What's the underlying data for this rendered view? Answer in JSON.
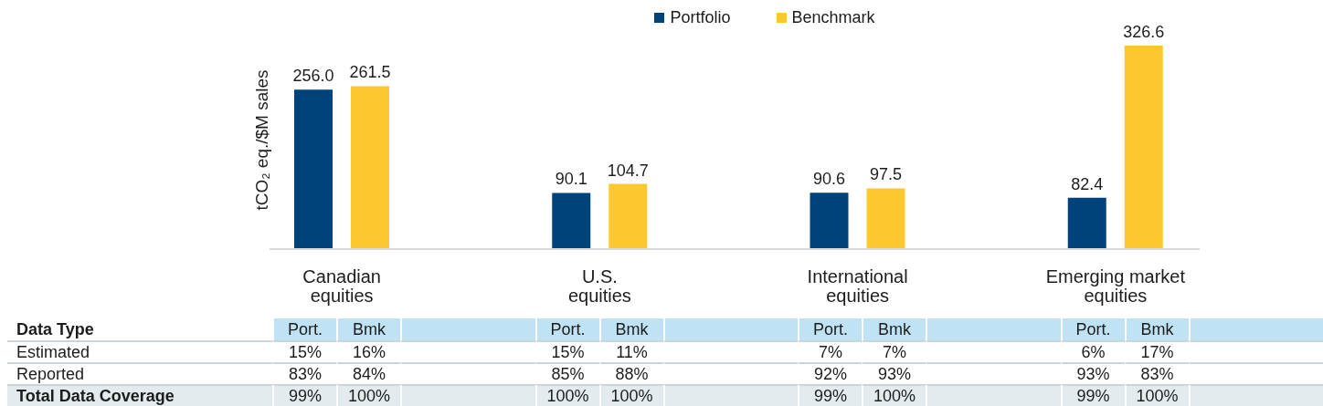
{
  "chart_data": [
    {
      "type": "bar",
      "categories": [
        "Canadian\nequities",
        "U.S.\nequities",
        "International\nequities",
        "Emerging market\nequities"
      ],
      "ylabel": "tCO₂ eq./$M sales",
      "legend": "top",
      "series": [
        {
          "name": "Portfolio",
          "color": "#00437a",
          "values": [
            256.0,
            90.1,
            90.6,
            82.4
          ],
          "value_labels": [
            "256.0",
            "90.1",
            "90.6",
            "82.4"
          ]
        },
        {
          "name": "Benchmark",
          "color": "#fdc82f",
          "values": [
            261.5,
            104.7,
            97.5,
            326.6
          ],
          "value_labels": [
            "261.5",
            "104.7",
            "97.5",
            "326.6"
          ]
        }
      ]
    },
    {
      "type": "other",
      "ylabel": "Data Type",
      "categories": [
        "Port.",
        "Bmk",
        null,
        "Port.",
        "Bmk",
        null,
        "Port.",
        "Bmk",
        null,
        "Port.",
        "Bmk",
        null
      ],
      "y_categories": [
        "Estimated",
        "Reported",
        "Total Data Coverage"
      ],
      "cells": [
        [
          "15%",
          "16%",
          null,
          "15%",
          "11%",
          null,
          "7%",
          "7%",
          null,
          "6%",
          "17%",
          null
        ],
        [
          "83%",
          "84%",
          null,
          "85%",
          "88%",
          null,
          "92%",
          "93%",
          null,
          "93%",
          "83%",
          null
        ],
        [
          "99%",
          "100%",
          null,
          "100%",
          "100%",
          null,
          "99%",
          "100%",
          null,
          "99%",
          "100%",
          null
        ]
      ]
    }
  ]
}
